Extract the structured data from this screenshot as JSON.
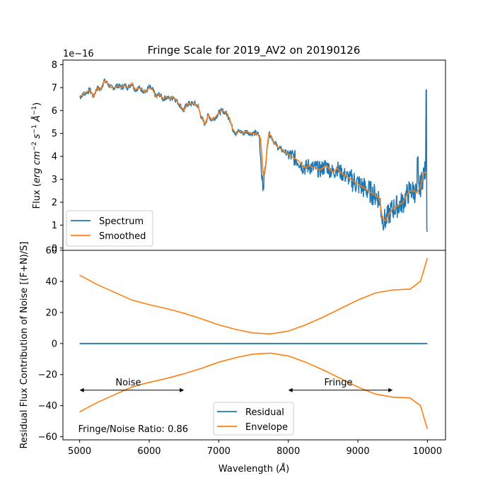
{
  "chart_data": [
    {
      "type": "line",
      "title": "Fringe Scale for 2019_AV2 on 20190126",
      "ylabel": "Flux (erg cm⁻² s⁻¹ Å⁻¹)",
      "ylabel_main": "Flux (",
      "ylabel_unit": "erg cm",
      "ylabel_close": ")",
      "exponent": "1e−16",
      "xlim": [
        4760,
        10260
      ],
      "ylim": [
        -0.1,
        8.2
      ],
      "yticks": [
        0,
        1,
        2,
        3,
        4,
        5,
        6,
        7,
        8
      ],
      "grid": false,
      "legend": "lower-left",
      "series": [
        {
          "name": "Spectrum",
          "color": "#1f77b4"
        },
        {
          "name": "Smoothed",
          "color": "#ff7f0e",
          "x": [
            5000,
            5050,
            5100,
            5150,
            5200,
            5250,
            5300,
            5350,
            5400,
            5450,
            5500,
            5550,
            5600,
            5650,
            5700,
            5750,
            5800,
            5850,
            5900,
            5950,
            6000,
            6050,
            6100,
            6150,
            6200,
            6250,
            6300,
            6350,
            6400,
            6450,
            6500,
            6550,
            6600,
            6650,
            6700,
            6750,
            6800,
            6850,
            6900,
            6950,
            7000,
            7050,
            7100,
            7150,
            7200,
            7250,
            7300,
            7350,
            7400,
            7450,
            7500,
            7550,
            7600,
            7620,
            7640,
            7660,
            7680,
            7700,
            7720,
            7750,
            7800,
            7850,
            7900,
            7950,
            8000,
            8050,
            8100,
            8150,
            8200,
            8250,
            8300,
            8350,
            8400,
            8450,
            8500,
            8550,
            8600,
            8650,
            8700,
            8750,
            8800,
            8850,
            8900,
            8950,
            9000,
            9050,
            9100,
            9150,
            9200,
            9250,
            9300,
            9320,
            9350,
            9400,
            9450,
            9500,
            9550,
            9600,
            9650,
            9700,
            9750,
            9800,
            9850,
            9900,
            9950,
            10000
          ],
          "y": [
            6.6,
            6.7,
            6.8,
            6.9,
            6.6,
            7.0,
            6.9,
            7.3,
            7.2,
            7.0,
            7.0,
            7.1,
            7.0,
            7.1,
            7.0,
            7.2,
            6.9,
            7.0,
            6.9,
            6.8,
            7.0,
            6.9,
            6.6,
            6.7,
            6.5,
            6.6,
            6.5,
            6.6,
            6.4,
            6.2,
            6.0,
            6.3,
            6.3,
            6.3,
            6.2,
            5.7,
            5.4,
            5.8,
            5.6,
            5.7,
            5.9,
            6.0,
            5.9,
            5.7,
            5.2,
            5.0,
            5.1,
            5.0,
            5.1,
            5.0,
            5.0,
            5.0,
            4.8,
            4.0,
            3.2,
            3.3,
            3.8,
            4.5,
            5.0,
            4.9,
            4.6,
            4.4,
            4.3,
            4.2,
            4.1,
            4.0,
            3.9,
            3.8,
            3.6,
            3.5,
            3.6,
            3.5,
            3.5,
            3.4,
            3.5,
            3.6,
            3.4,
            3.3,
            3.5,
            3.3,
            3.2,
            3.1,
            3.0,
            2.9,
            2.8,
            2.7,
            2.6,
            2.5,
            2.4,
            2.3,
            2.2,
            2.0,
            1.3,
            1.2,
            1.5,
            1.7,
            1.8,
            1.9,
            2.0,
            2.3,
            2.5,
            2.5,
            2.4,
            2.7,
            3.3,
            3.3
          ]
        }
      ]
    },
    {
      "type": "line",
      "xlabel": "Wavelength (Å)",
      "xlabel_main": "Wavelength (",
      "xlabel_unit": "Å",
      "xlabel_close": ")",
      "ylabel": "Residual Flux Contribution of Noise [(F+N)/S]",
      "xlim": [
        4760,
        10260
      ],
      "ylim": [
        -62,
        60
      ],
      "xticks": [
        5000,
        6000,
        7000,
        8000,
        9000,
        10000
      ],
      "yticks": [
        -60,
        -40,
        -20,
        0,
        20,
        40,
        60
      ],
      "grid": false,
      "legend": "lower-center",
      "series": [
        {
          "name": "Residual",
          "color": "#1f77b4",
          "x": [
            5000,
            10000
          ],
          "y": [
            0,
            0
          ]
        },
        {
          "name": "Envelope",
          "color": "#ff7f0e",
          "x": [
            5000,
            5250,
            5500,
            5750,
            6000,
            6250,
            6500,
            6750,
            7000,
            7250,
            7500,
            7750,
            8000,
            8250,
            8500,
            8750,
            9000,
            9250,
            9500,
            9750,
            9900,
            10000
          ],
          "y": [
            44,
            38,
            33,
            28,
            25,
            22.5,
            19.5,
            16,
            12,
            9,
            6.8,
            6.2,
            8,
            12,
            17,
            22.5,
            28,
            32.5,
            34.5,
            35,
            40,
            55
          ]
        }
      ],
      "annotations": [
        {
          "text": "Noise",
          "x": 5700,
          "y": -27,
          "arrow_from": 5000,
          "arrow_to": 6500,
          "arrow_y": -30
        },
        {
          "text": "Fringe",
          "x": 8720,
          "y": -27,
          "arrow_from": 8000,
          "arrow_to": 9500,
          "arrow_y": -30
        },
        {
          "text": "Fringe/Noise Ratio: 0.86",
          "x": 4980,
          "y": -57
        }
      ]
    }
  ]
}
